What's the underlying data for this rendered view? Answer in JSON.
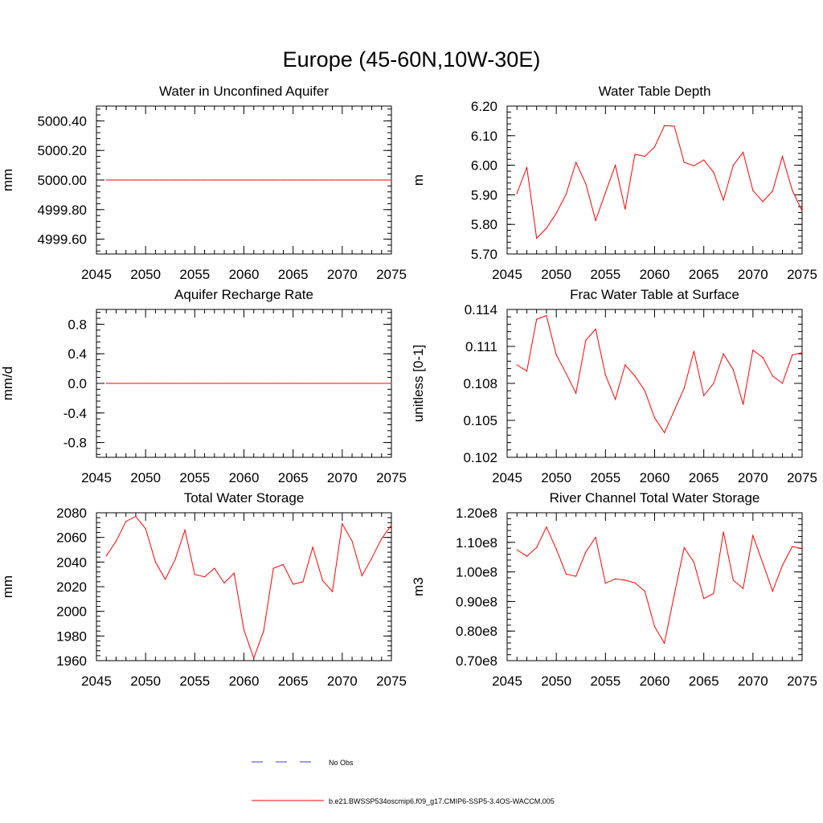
{
  "figure_title": "Europe (45-60N,10W-30E)",
  "colors": {
    "model": "#ff0000",
    "obs": "#3b3bd6",
    "axis": "#000000"
  },
  "legend": {
    "obs_label": "No Obs",
    "model_label": "b.e21.BWSSP534oscmip6.f09_g17.CMIP6-SSP5-3.4OS-WACCM.005"
  },
  "chart_data": [
    {
      "type": "line",
      "id": "p1",
      "title": "Water in Unconfined Aquifer",
      "ylabel": "mm",
      "xlabel": "",
      "xlim": [
        2045,
        2075
      ],
      "ylim": [
        4999.5,
        5000.5
      ],
      "xticks": [
        "2045",
        "2050",
        "2055",
        "2060",
        "2065",
        "2070",
        "2075"
      ],
      "yticks": [
        {
          "v": 4999.6,
          "label": "4999.60"
        },
        {
          "v": 4999.8,
          "label": "4999.80"
        },
        {
          "v": 5000.0,
          "label": "5000.00"
        },
        {
          "v": 5000.2,
          "label": "5000.20"
        },
        {
          "v": 5000.4,
          "label": "5000.40"
        }
      ],
      "x": [
        2046,
        2047,
        2048,
        2049,
        2050,
        2051,
        2052,
        2053,
        2054,
        2055,
        2056,
        2057,
        2058,
        2059,
        2060,
        2061,
        2062,
        2063,
        2064,
        2065,
        2066,
        2067,
        2068,
        2069,
        2070,
        2071,
        2072,
        2073,
        2074,
        2075
      ],
      "series": [
        {
          "name": "b.e21.BWSSP534oscmip6.f09_g17.CMIP6-SSP5-3.4OS-WACCM.005",
          "values": [
            5000,
            5000,
            5000,
            5000,
            5000,
            5000,
            5000,
            5000,
            5000,
            5000,
            5000,
            5000,
            5000,
            5000,
            5000,
            5000,
            5000,
            5000,
            5000,
            5000,
            5000,
            5000,
            5000,
            5000,
            5000,
            5000,
            5000,
            5000,
            5000,
            5000
          ]
        }
      ]
    },
    {
      "type": "line",
      "id": "p2",
      "title": "Water Table Depth",
      "ylabel": "m",
      "xlabel": "",
      "xlim": [
        2045,
        2075
      ],
      "ylim": [
        5.7,
        6.2
      ],
      "xticks": [
        "2045",
        "2050",
        "2055",
        "2060",
        "2065",
        "2070",
        "2075"
      ],
      "yticks": [
        {
          "v": 5.7,
          "label": "5.70"
        },
        {
          "v": 5.8,
          "label": "5.80"
        },
        {
          "v": 5.9,
          "label": "5.90"
        },
        {
          "v": 6.0,
          "label": "6.00"
        },
        {
          "v": 6.1,
          "label": "6.10"
        },
        {
          "v": 6.2,
          "label": "6.20"
        }
      ],
      "x": [
        2046,
        2047,
        2048,
        2049,
        2050,
        2051,
        2052,
        2053,
        2054,
        2055,
        2056,
        2057,
        2058,
        2059,
        2060,
        2061,
        2062,
        2063,
        2064,
        2065,
        2066,
        2067,
        2068,
        2069,
        2070,
        2071,
        2072,
        2073,
        2074,
        2075
      ],
      "series": [
        {
          "name": "b.e21.BWSSP534oscmip6.f09_g17.CMIP6-SSP5-3.4OS-WACCM.005",
          "values": [
            5.905,
            5.993,
            5.753,
            5.787,
            5.838,
            5.902,
            6.01,
            5.937,
            5.813,
            5.907,
            6.0,
            5.852,
            6.037,
            6.03,
            6.062,
            6.134,
            6.132,
            6.01,
            5.998,
            6.018,
            5.976,
            5.882,
            6.0,
            6.044,
            5.915,
            5.877,
            5.913,
            6.03,
            5.915,
            5.845
          ]
        }
      ]
    },
    {
      "type": "line",
      "id": "p3",
      "title": "Aquifer Recharge Rate",
      "ylabel": "mm/d",
      "xlabel": "",
      "xlim": [
        2045,
        2075
      ],
      "ylim": [
        -1.0,
        1.0
      ],
      "xticks": [
        "2045",
        "2050",
        "2055",
        "2060",
        "2065",
        "2070",
        "2075"
      ],
      "yticks": [
        {
          "v": -0.8,
          "label": "-0.8"
        },
        {
          "v": -0.4,
          "label": "-0.4"
        },
        {
          "v": 0.0,
          "label": "0.0"
        },
        {
          "v": 0.4,
          "label": "0.4"
        },
        {
          "v": 0.8,
          "label": "0.8"
        }
      ],
      "x": [
        2046,
        2047,
        2048,
        2049,
        2050,
        2051,
        2052,
        2053,
        2054,
        2055,
        2056,
        2057,
        2058,
        2059,
        2060,
        2061,
        2062,
        2063,
        2064,
        2065,
        2066,
        2067,
        2068,
        2069,
        2070,
        2071,
        2072,
        2073,
        2074,
        2075
      ],
      "series": [
        {
          "name": "b.e21.BWSSP534oscmip6.f09_g17.CMIP6-SSP5-3.4OS-WACCM.005",
          "values": [
            0,
            0,
            0,
            0,
            0,
            0,
            0,
            0,
            0,
            0,
            0,
            0,
            0,
            0,
            0,
            0,
            0,
            0,
            0,
            0,
            0,
            0,
            0,
            0,
            0,
            0,
            0,
            0,
            0,
            0
          ]
        }
      ]
    },
    {
      "type": "line",
      "id": "p4",
      "title": "Frac Water Table at Surface",
      "ylabel": "unitless [0-1]",
      "xlabel": "",
      "xlim": [
        2045,
        2075
      ],
      "ylim": [
        0.102,
        0.114
      ],
      "xticks": [
        "2045",
        "2050",
        "2055",
        "2060",
        "2065",
        "2070",
        "2075"
      ],
      "yticks": [
        {
          "v": 0.102,
          "label": "0.102"
        },
        {
          "v": 0.105,
          "label": "0.105"
        },
        {
          "v": 0.108,
          "label": "0.108"
        },
        {
          "v": 0.111,
          "label": "0.111"
        },
        {
          "v": 0.114,
          "label": "0.114"
        }
      ],
      "x": [
        2046,
        2047,
        2048,
        2049,
        2050,
        2051,
        2052,
        2053,
        2054,
        2055,
        2056,
        2057,
        2058,
        2059,
        2060,
        2061,
        2062,
        2063,
        2064,
        2065,
        2066,
        2067,
        2068,
        2069,
        2070,
        2071,
        2072,
        2073,
        2074,
        2075
      ],
      "series": [
        {
          "name": "b.e21.BWSSP534oscmip6.f09_g17.CMIP6-SSP5-3.4OS-WACCM.005",
          "values": [
            0.1095,
            0.109,
            0.1132,
            0.1135,
            0.1103,
            0.1088,
            0.1072,
            0.1115,
            0.1124,
            0.1087,
            0.1067,
            0.1095,
            0.1086,
            0.1074,
            0.1052,
            0.104,
            0.1058,
            0.1076,
            0.1106,
            0.107,
            0.108,
            0.1104,
            0.1091,
            0.1063,
            0.1107,
            0.1101,
            0.1086,
            0.108,
            0.1103,
            0.1105
          ]
        }
      ]
    },
    {
      "type": "line",
      "id": "p5",
      "title": "Total Water Storage",
      "ylabel": "mm",
      "xlabel": "",
      "xlim": [
        2045,
        2075
      ],
      "ylim": [
        1960,
        2080
      ],
      "xticks": [
        "2045",
        "2050",
        "2055",
        "2060",
        "2065",
        "2070",
        "2075"
      ],
      "yticks": [
        {
          "v": 1960,
          "label": "1960"
        },
        {
          "v": 1980,
          "label": "1980"
        },
        {
          "v": 2000,
          "label": "2000"
        },
        {
          "v": 2020,
          "label": "2020"
        },
        {
          "v": 2040,
          "label": "2040"
        },
        {
          "v": 2060,
          "label": "2060"
        },
        {
          "v": 2080,
          "label": "2080"
        }
      ],
      "x": [
        2046,
        2047,
        2048,
        2049,
        2050,
        2051,
        2052,
        2053,
        2054,
        2055,
        2056,
        2057,
        2058,
        2059,
        2060,
        2061,
        2062,
        2063,
        2064,
        2065,
        2066,
        2067,
        2068,
        2069,
        2070,
        2071,
        2072,
        2073,
        2074,
        2075
      ],
      "series": [
        {
          "name": "b.e21.BWSSP534oscmip6.f09_g17.CMIP6-SSP5-3.4OS-WACCM.005",
          "values": [
            2045,
            2057,
            2073,
            2077,
            2067,
            2040,
            2026,
            2042,
            2066,
            2030,
            2028,
            2035,
            2023,
            2031,
            1985,
            1962,
            1984,
            2035,
            2038,
            2022,
            2024,
            2052,
            2025,
            2016,
            2071,
            2057,
            2029,
            2043,
            2059,
            2070
          ]
        }
      ]
    },
    {
      "type": "line",
      "id": "p6",
      "title": "River Channel Total Water Storage",
      "ylabel": "m3",
      "xlabel": "",
      "xlim": [
        2045,
        2075
      ],
      "ylim": [
        0.7,
        1.2
      ],
      "xticks": [
        "2045",
        "2050",
        "2055",
        "2060",
        "2065",
        "2070",
        "2075"
      ],
      "yticks": [
        {
          "v": 0.7,
          "label": "0.70e8"
        },
        {
          "v": 0.8,
          "label": "0.80e8"
        },
        {
          "v": 0.9,
          "label": "0.90e8"
        },
        {
          "v": 1.0,
          "label": "1.00e8"
        },
        {
          "v": 1.1,
          "label": "1.10e8"
        },
        {
          "v": 1.2,
          "label": "1.20e8"
        }
      ],
      "x": [
        2046,
        2047,
        2048,
        2049,
        2050,
        2051,
        2052,
        2053,
        2054,
        2055,
        2056,
        2057,
        2058,
        2059,
        2060,
        2061,
        2062,
        2063,
        2064,
        2065,
        2066,
        2067,
        2068,
        2069,
        2070,
        2071,
        2072,
        2073,
        2074,
        2075
      ],
      "series": [
        {
          "name": "b.e21.BWSSP534oscmip6.f09_g17.CMIP6-SSP5-3.4OS-WACCM.005",
          "values": [
            1.075,
            1.053,
            1.083,
            1.152,
            1.077,
            0.993,
            0.985,
            1.067,
            1.117,
            0.962,
            0.976,
            0.972,
            0.963,
            0.935,
            0.815,
            0.759,
            0.923,
            1.082,
            1.033,
            0.91,
            0.927,
            1.135,
            0.972,
            0.944,
            1.123,
            1.03,
            0.935,
            1.022,
            1.086,
            1.078
          ]
        }
      ]
    }
  ]
}
